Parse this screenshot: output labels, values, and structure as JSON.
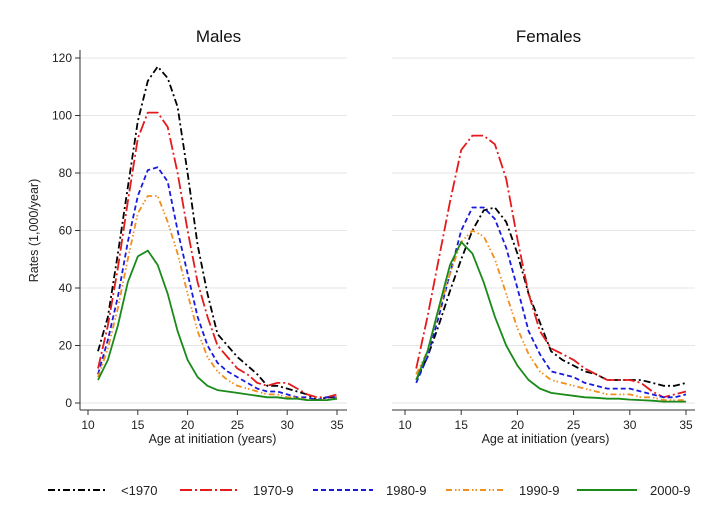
{
  "chart_data": [
    {
      "type": "line",
      "title": "Males",
      "xlabel": "Age at initiation (years)",
      "ylabel": "Rates (1,000/year)",
      "xlim": [
        10,
        35
      ],
      "ylim": [
        0,
        120
      ],
      "xticks": [
        10,
        15,
        20,
        25,
        30,
        35
      ],
      "yticks": [
        0,
        20,
        40,
        60,
        80,
        100,
        120
      ],
      "grid": true,
      "x": [
        11,
        12,
        13,
        14,
        15,
        16,
        17,
        18,
        19,
        20,
        21,
        22,
        23,
        24,
        25,
        26,
        27,
        28,
        29,
        30,
        31,
        32,
        33,
        34,
        35
      ],
      "series": [
        {
          "name": "<1970",
          "values": [
            18,
            30,
            52,
            75,
            98,
            112,
            117,
            113,
            103,
            80,
            55,
            38,
            24,
            20,
            16,
            13,
            10,
            6,
            6,
            5,
            4,
            3,
            1,
            2,
            2
          ]
        },
        {
          "name": "1970-9",
          "values": [
            12,
            27,
            47,
            70,
            92,
            101,
            101,
            96,
            80,
            60,
            42,
            30,
            20,
            16,
            12,
            10,
            7,
            6,
            7,
            7,
            5,
            3,
            2,
            2,
            3
          ]
        },
        {
          "name": "1980-9",
          "values": [
            10,
            22,
            37,
            56,
            72,
            81,
            82,
            77,
            60,
            45,
            30,
            20,
            14,
            11,
            9,
            7,
            5,
            4,
            4,
            3,
            2,
            2,
            1,
            2,
            2
          ]
        },
        {
          "name": "1990-9",
          "values": [
            9,
            19,
            33,
            50,
            66,
            72,
            72,
            63,
            52,
            38,
            25,
            16,
            11,
            8,
            6,
            5,
            4,
            3,
            3,
            2,
            2,
            1,
            1,
            1,
            2
          ]
        },
        {
          "name": "2000-9",
          "values": [
            8,
            15,
            27,
            42,
            51,
            53,
            48,
            38,
            25,
            15,
            9,
            6,
            4.5,
            4,
            3.5,
            3,
            2.5,
            2,
            2,
            1.5,
            1.5,
            1,
            1,
            1,
            1.5
          ]
        }
      ]
    },
    {
      "type": "line",
      "title": "Females",
      "xlabel": "Age at initiation (years)",
      "ylabel": "",
      "xlim": [
        10,
        35
      ],
      "ylim": [
        0,
        120
      ],
      "xticks": [
        10,
        15,
        20,
        25,
        30,
        35
      ],
      "yticks": [
        0,
        20,
        40,
        60,
        80,
        100,
        120
      ],
      "grid": true,
      "x": [
        11,
        12,
        13,
        14,
        15,
        16,
        17,
        18,
        19,
        20,
        21,
        22,
        23,
        24,
        25,
        26,
        27,
        28,
        29,
        30,
        31,
        32,
        33,
        34,
        35
      ],
      "series": [
        {
          "name": "<1970",
          "values": [
            8,
            16,
            27,
            39,
            50,
            60,
            67,
            68,
            63,
            52,
            38,
            28,
            18,
            15,
            13,
            11,
            10,
            8,
            8,
            8,
            8,
            7,
            6,
            6,
            7
          ]
        },
        {
          "name": "1970-9",
          "values": [
            12,
            30,
            50,
            70,
            88,
            93,
            93,
            90,
            78,
            57,
            38,
            25,
            19,
            17,
            15,
            12,
            10,
            8,
            8,
            8,
            7,
            4,
            2,
            3,
            4
          ]
        },
        {
          "name": "1980-9",
          "values": [
            7,
            16,
            30,
            45,
            60,
            68,
            68,
            64,
            54,
            40,
            25,
            17,
            11,
            10,
            9,
            7,
            6,
            5,
            5,
            5,
            4,
            3,
            2,
            2,
            3
          ]
        },
        {
          "name": "1990-9",
          "values": [
            10,
            18,
            32,
            45,
            56,
            60,
            58,
            50,
            38,
            26,
            17,
            11,
            8,
            7,
            6,
            5,
            4,
            3,
            3,
            3,
            2,
            2,
            1,
            1,
            1
          ]
        },
        {
          "name": "2000-9",
          "values": [
            8,
            18,
            33,
            48,
            56,
            52,
            42,
            30,
            20,
            13,
            8,
            5,
            3.5,
            3,
            2.5,
            2,
            1.8,
            1.5,
            1.5,
            1.2,
            1,
            0.8,
            0.5,
            0.5,
            0.5
          ]
        }
      ]
    }
  ],
  "legend": {
    "placement": "bottom",
    "items": [
      {
        "label": "<1970",
        "color": "#000000",
        "style": "dash-dot"
      },
      {
        "label": "1970-9",
        "color": "#e41a1c",
        "style": "long-dash-dot"
      },
      {
        "label": "1980-9",
        "color": "#1a1adf",
        "style": "dash"
      },
      {
        "label": "1990-9",
        "color": "#f28e1c",
        "style": "dash-dot-dot"
      },
      {
        "label": "2000-9",
        "color": "#1a8a1a",
        "style": "solid"
      }
    ]
  }
}
